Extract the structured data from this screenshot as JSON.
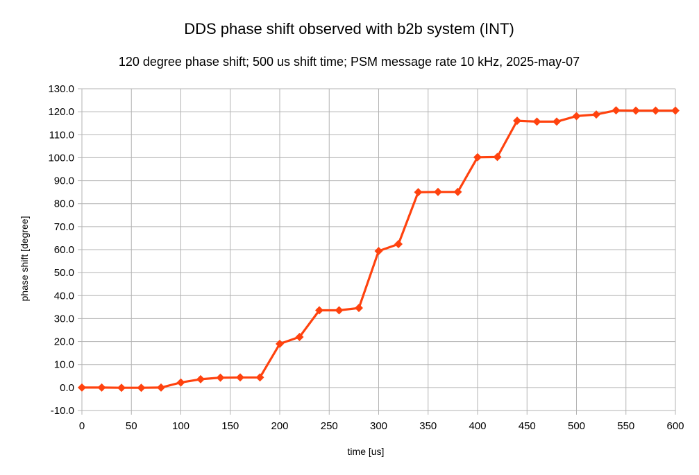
{
  "chart_data": {
    "type": "line",
    "title": "DDS phase shift observed with b2b system (INT)",
    "subtitle": "120 degree phase shift; 500 us shift time; PSM message rate 10 kHz, 2025-may-07",
    "xlabel": "time [us]",
    "ylabel": "phase shift [degree]",
    "xlim": [
      0,
      600
    ],
    "ylim": [
      -10,
      130
    ],
    "x_ticks": [
      0,
      50,
      100,
      150,
      200,
      250,
      300,
      350,
      400,
      450,
      500,
      550,
      600
    ],
    "x_tick_labels": [
      "0",
      "50",
      "100",
      "150",
      "200",
      "250",
      "300",
      "350",
      "400",
      "450",
      "500",
      "550",
      "600"
    ],
    "y_ticks": [
      -10,
      0,
      10,
      20,
      30,
      40,
      50,
      60,
      70,
      80,
      90,
      100,
      110,
      120,
      130
    ],
    "y_tick_labels": [
      "-10.0",
      "0.0",
      "10.0",
      "20.0",
      "30.0",
      "40.0",
      "50.0",
      "60.0",
      "70.0",
      "80.0",
      "90.0",
      "100.0",
      "110.0",
      "120.0",
      "130.0"
    ],
    "grid": true,
    "legend": "none",
    "series": [
      {
        "color": "#ff420e",
        "marker": "diamond",
        "x": [
          0,
          20,
          40,
          60,
          80,
          100,
          120,
          140,
          160,
          180,
          200,
          220,
          240,
          260,
          280,
          300,
          320,
          340,
          360,
          380,
          400,
          420,
          440,
          460,
          480,
          500,
          520,
          540,
          560,
          580,
          600
        ],
        "y": [
          0.0,
          0.0,
          -0.1,
          -0.1,
          0.0,
          2.2,
          3.6,
          4.3,
          4.4,
          4.4,
          19.0,
          22.0,
          33.6,
          33.6,
          34.6,
          59.4,
          62.4,
          85.0,
          85.1,
          85.1,
          100.2,
          100.3,
          116.1,
          115.7,
          115.7,
          118.1,
          118.8,
          120.6,
          120.5,
          120.5,
          120.5
        ]
      }
    ]
  }
}
